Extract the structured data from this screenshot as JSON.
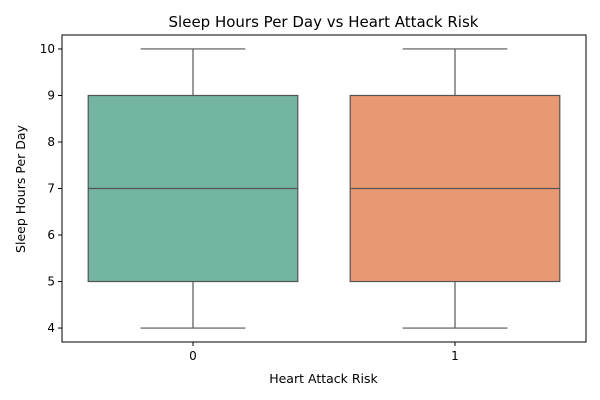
{
  "chart_data": {
    "type": "box",
    "title": "Sleep Hours Per Day vs Heart Attack Risk",
    "xlabel": "Heart Attack Risk",
    "ylabel": "Sleep Hours Per Day",
    "categories": [
      "0",
      "1"
    ],
    "ylim": [
      3.7,
      10.3
    ],
    "yticks": [
      4,
      5,
      6,
      7,
      8,
      9,
      10
    ],
    "grid": false,
    "boxes": [
      {
        "category": "0",
        "whisker_low": 4,
        "q1": 5,
        "median": 7,
        "q3": 9,
        "whisker_high": 10,
        "color": "#73b5a0"
      },
      {
        "category": "1",
        "whisker_low": 4,
        "q1": 5,
        "median": 7,
        "q3": 9,
        "whisker_high": 10,
        "color": "#e99874"
      }
    ],
    "line_color": "#555555"
  }
}
